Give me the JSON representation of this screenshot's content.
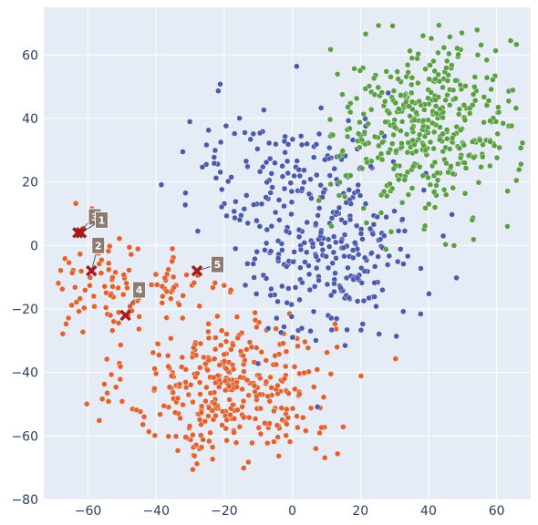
{
  "chart_data": {
    "type": "scatter",
    "title": "",
    "xlabel": "",
    "ylabel": "",
    "xlim": [
      -73,
      70
    ],
    "ylim": [
      -80,
      75
    ],
    "grid": true,
    "x_ticks": [
      -60,
      -40,
      -20,
      0,
      20,
      40,
      60
    ],
    "y_ticks": [
      -80,
      -60,
      -40,
      -20,
      0,
      20,
      40,
      60
    ],
    "x_tick_labels": [
      "−60",
      "−40",
      "−20",
      "0",
      "20",
      "40",
      "60"
    ],
    "y_tick_labels": [
      "−80",
      "−60",
      "−40",
      "−20",
      "0",
      "20",
      "40",
      "60"
    ],
    "background_color": "#e5ecf6",
    "series": [
      {
        "color": "#e1622f",
        "clusters": [
          {
            "cx": -18,
            "cy": -45,
            "sx": 15,
            "sy": 12,
            "n": 360
          },
          {
            "cx": -55,
            "cy": -12,
            "sx": 8,
            "sy": 9,
            "n": 70
          },
          {
            "cx": -35,
            "cy": -12,
            "sx": 7,
            "sy": 6,
            "n": 35
          }
        ]
      },
      {
        "color": "#4a5bab",
        "clusters": [
          {
            "cx": 10,
            "cy": 5,
            "sx": 13,
            "sy": 17,
            "n": 330
          },
          {
            "cx": -20,
            "cy": 25,
            "sx": 8,
            "sy": 10,
            "n": 40
          }
        ]
      },
      {
        "color": "#5aa042",
        "clusters": [
          {
            "cx": 40,
            "cy": 38,
            "sx": 13,
            "sy": 14,
            "n": 420
          }
        ]
      }
    ],
    "marker_color": "#a51c1c",
    "annotation_box_color": "#8c7b70",
    "markers": [
      {
        "x": -63,
        "y": 4,
        "label": "3",
        "lx": -58,
        "ly": 9
      },
      {
        "x": -62,
        "y": 4,
        "label": "1",
        "lx": -56,
        "ly": 8
      },
      {
        "x": -59,
        "y": -8,
        "label": "2",
        "lx": -57,
        "ly": 0
      },
      {
        "x": -49,
        "y": -22,
        "label": "4",
        "lx": -45,
        "ly": -14
      },
      {
        "x": -28,
        "y": -8,
        "label": "5",
        "lx": -22,
        "ly": -6
      }
    ]
  }
}
